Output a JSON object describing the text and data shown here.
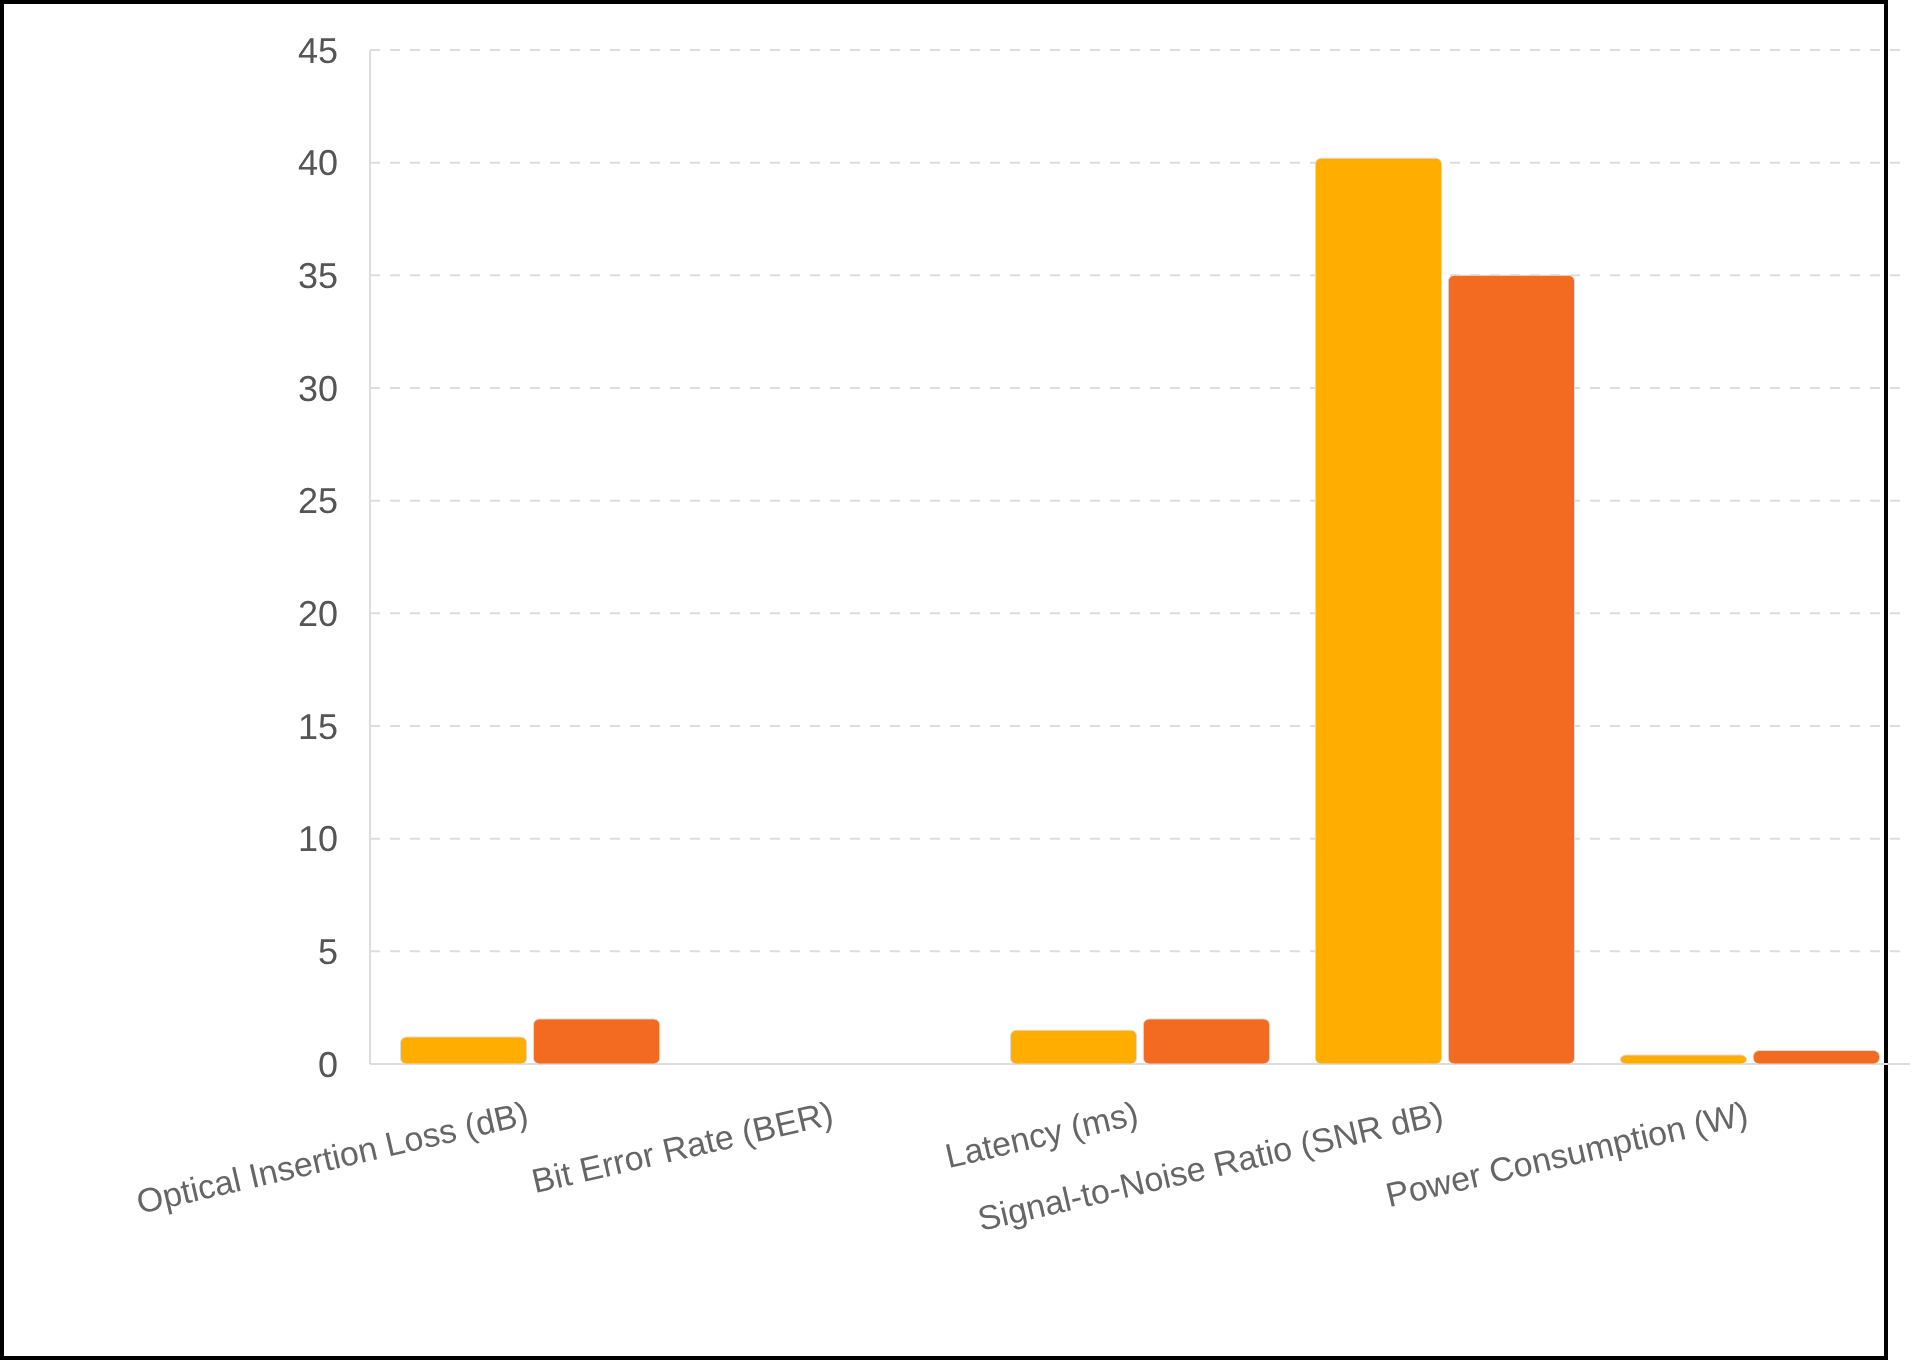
{
  "chart_data": {
    "type": "bar",
    "categories": [
      "Optical Insertion Loss (dB)",
      "Bit Error Rate (BER)",
      "Latency (ms)",
      "Signal-to-Noise Ratio (SNR dB)",
      "Power Consumption (W)"
    ],
    "series": [
      {
        "color": "#ffae00",
        "values": [
          1.2,
          0,
          1.5,
          40.2,
          0.4
        ]
      },
      {
        "color": "#f26b21",
        "values": [
          2.0,
          0,
          2.0,
          35,
          0.6
        ]
      }
    ],
    "ylim": [
      0,
      45
    ],
    "yticks": [
      0,
      5,
      10,
      15,
      20,
      25,
      30,
      35,
      40,
      45
    ],
    "grid": "y"
  }
}
